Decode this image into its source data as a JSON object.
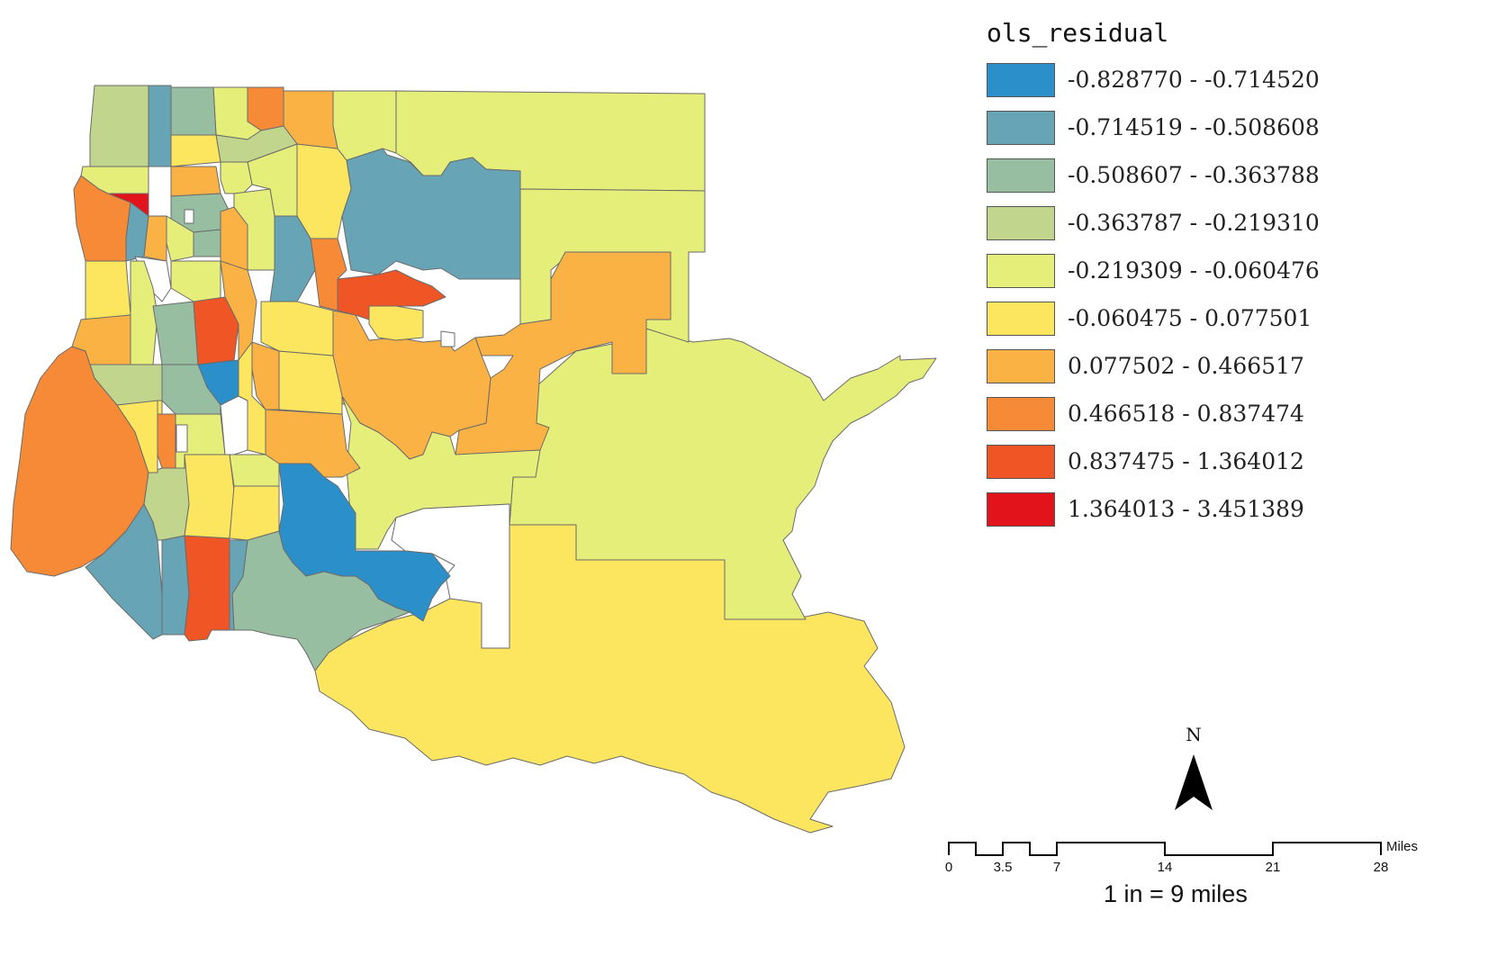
{
  "legend": {
    "title": "ols_residual",
    "classes": [
      {
        "label": "-0.828770 - -0.714520",
        "color": "#2b8fc9"
      },
      {
        "label": "-0.714519 - -0.508608",
        "color": "#67a4b5"
      },
      {
        "label": "-0.508607 - -0.363788",
        "color": "#97bea0"
      },
      {
        "label": "-0.363787 - -0.219310",
        "color": "#c2d58d"
      },
      {
        "label": "-0.219309 - -0.060476",
        "color": "#e6ee7a"
      },
      {
        "label": "-0.060475 - 0.077501",
        "color": "#fce65f"
      },
      {
        "label": "0.077502 - 0.466517",
        "color": "#fbb244"
      },
      {
        "label": "0.466518 - 0.837474",
        "color": "#f78a36"
      },
      {
        "label": "0.837475 - 1.364012",
        "color": "#f05525"
      },
      {
        "label": "1.364013 - 3.451389",
        "color": "#e3131b"
      }
    ]
  },
  "north_arrow": {
    "letter": "N"
  },
  "scale_bar": {
    "ticks": [
      "0",
      "3.5",
      "7",
      "14",
      "21",
      "28"
    ],
    "unit": "Miles",
    "caption": "1 in = 9 miles"
  }
}
